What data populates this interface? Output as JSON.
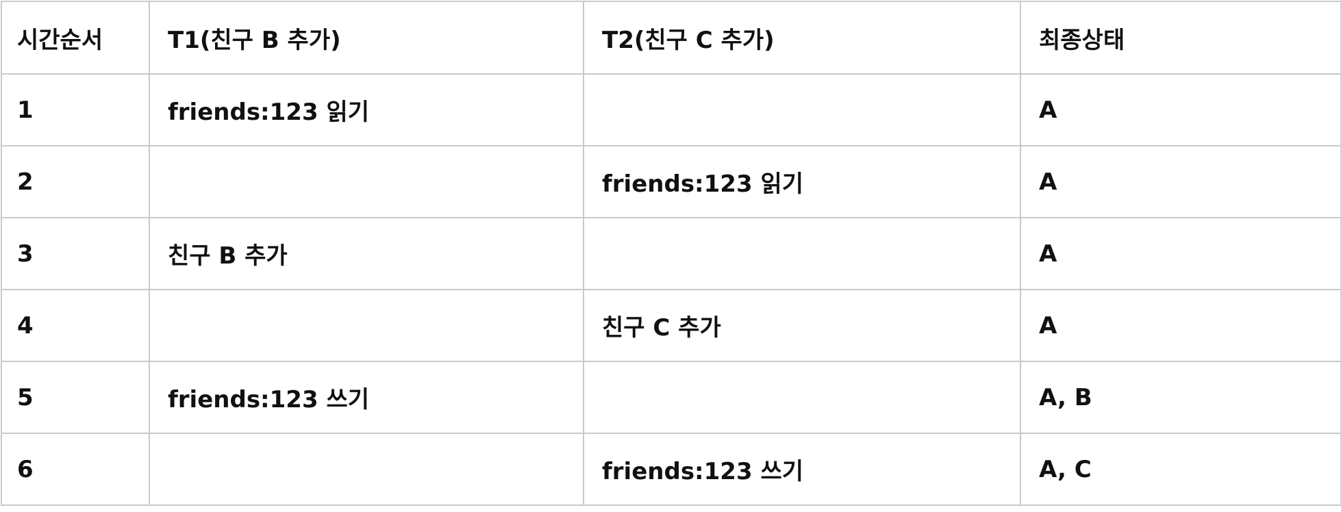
{
  "table": {
    "headers": [
      "시간순서",
      "T1(친구 B 추가)",
      "T2(친구 C 추가)",
      "최종상태"
    ],
    "rows": [
      [
        "1",
        "friends:123 읽기",
        "",
        "A"
      ],
      [
        "2",
        "",
        "friends:123 읽기",
        "A"
      ],
      [
        "3",
        "친구 B 추가",
        "",
        "A"
      ],
      [
        "4",
        "",
        "친구 C 추가",
        "A"
      ],
      [
        "5",
        "friends:123 쓰기",
        "",
        "A, B"
      ],
      [
        "6",
        "",
        "friends:123 쓰기",
        "A, C"
      ]
    ]
  }
}
